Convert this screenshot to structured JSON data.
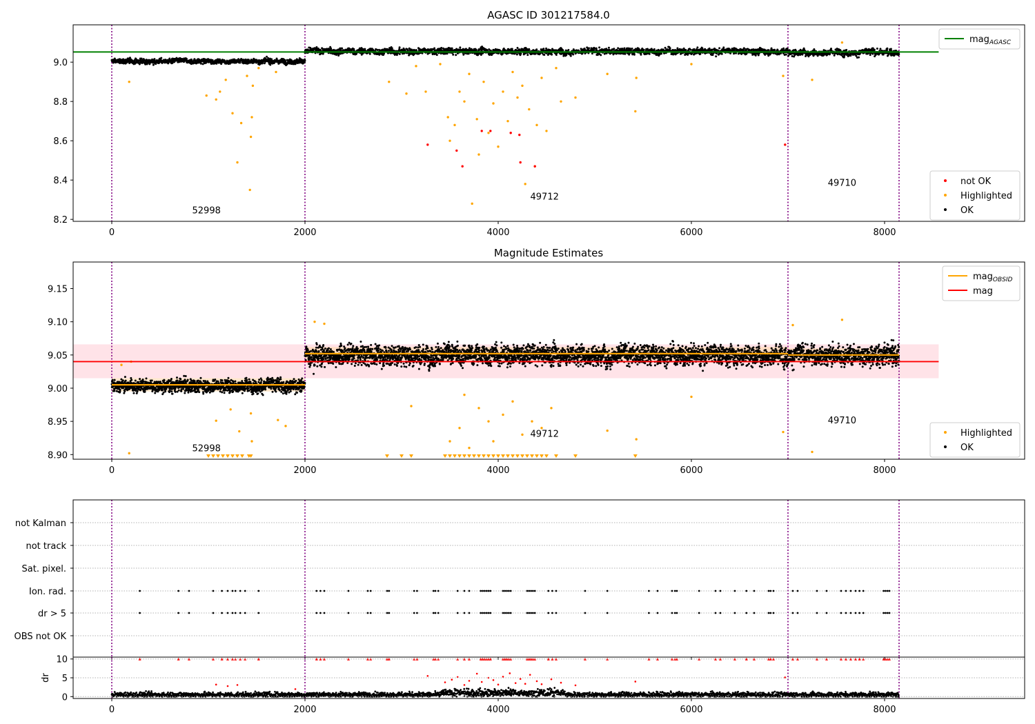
{
  "colors": {
    "ok": "#000000",
    "highlighted": "#ffa500",
    "not_ok": "#ff0000",
    "mag_agasc": "#008000",
    "mag_obsid": "#ffa500",
    "mag": "#ff0000",
    "obs_boundary": "#800080",
    "band": "#ffc0cb",
    "obsid_band": "#ffd7a8"
  },
  "chart_data": [
    {
      "type": "scatter",
      "title": "AGASC ID 301217584.0",
      "xlim": [
        -400,
        9450
      ],
      "ylim": [
        8.19,
        9.19
      ],
      "x_ticks": [
        0,
        2000,
        4000,
        6000,
        8000
      ],
      "y_ticks": [
        8.2,
        8.4,
        8.6,
        8.8,
        9.0
      ],
      "y_tick_labels": [
        "8.2",
        "8.4",
        "8.6",
        "8.8",
        "9.0"
      ],
      "grid": false,
      "legend_placement": "upper-right and lower-right",
      "legend_top": [
        {
          "label": "mag",
          "sub": "AGASC",
          "kind": "line",
          "color": "#008000"
        }
      ],
      "legend_bottom": [
        {
          "label": "not OK",
          "kind": "dot",
          "color": "#ff0000"
        },
        {
          "label": "Highlighted",
          "kind": "dot",
          "color": "#ffa500"
        },
        {
          "label": "OK",
          "kind": "dot",
          "color": "#000000"
        }
      ],
      "mag_agasc": 9.052,
      "obs_boundaries": [
        0,
        2000,
        7000,
        8150
      ],
      "annotations": [
        {
          "text": "52998",
          "x": 980,
          "y": 8.23
        },
        {
          "text": "49712",
          "x": 4480,
          "y": 8.3
        },
        {
          "text": "49710",
          "x": 7560,
          "y": 8.37
        }
      ],
      "ok_segments": [
        {
          "x0": 0,
          "x1": 2000,
          "center": 9.005,
          "spread": 0.012
        },
        {
          "x0": 2000,
          "x1": 7000,
          "center": 9.055,
          "spread": 0.015
        },
        {
          "x0": 7000,
          "x1": 8150,
          "center": 9.05,
          "spread": 0.016
        }
      ],
      "highlighted_points": [
        [
          180,
          8.9
        ],
        [
          980,
          8.83
        ],
        [
          1080,
          8.81
        ],
        [
          1120,
          8.85
        ],
        [
          1180,
          8.91
        ],
        [
          1250,
          8.74
        ],
        [
          1300,
          8.49
        ],
        [
          1340,
          8.69
        ],
        [
          1400,
          8.93
        ],
        [
          1430,
          8.35
        ],
        [
          1440,
          8.62
        ],
        [
          1450,
          8.72
        ],
        [
          1460,
          8.88
        ],
        [
          1520,
          8.97
        ],
        [
          1700,
          8.95
        ],
        [
          2870,
          8.9
        ],
        [
          3050,
          8.84
        ],
        [
          3150,
          8.98
        ],
        [
          3250,
          8.85
        ],
        [
          3400,
          8.99
        ],
        [
          3480,
          8.72
        ],
        [
          3500,
          8.6
        ],
        [
          3550,
          8.68
        ],
        [
          3600,
          8.85
        ],
        [
          3650,
          8.8
        ],
        [
          3700,
          8.94
        ],
        [
          3730,
          8.28
        ],
        [
          3780,
          8.71
        ],
        [
          3800,
          8.53
        ],
        [
          3850,
          8.9
        ],
        [
          3900,
          8.64
        ],
        [
          3950,
          8.79
        ],
        [
          4000,
          8.57
        ],
        [
          4050,
          8.85
        ],
        [
          4100,
          8.7
        ],
        [
          4150,
          8.95
        ],
        [
          4200,
          8.82
        ],
        [
          4250,
          8.88
        ],
        [
          4280,
          8.38
        ],
        [
          4320,
          8.76
        ],
        [
          4380,
          8.47
        ],
        [
          4400,
          8.68
        ],
        [
          4450,
          8.92
        ],
        [
          4500,
          8.65
        ],
        [
          4600,
          8.97
        ],
        [
          4650,
          8.8
        ],
        [
          4800,
          8.82
        ],
        [
          5130,
          8.94
        ],
        [
          5420,
          8.75
        ],
        [
          5430,
          8.92
        ],
        [
          6000,
          8.99
        ],
        [
          6950,
          8.93
        ],
        [
          7250,
          8.91
        ],
        [
          7560,
          9.1
        ]
      ],
      "not_ok_points": [
        [
          3270,
          8.58
        ],
        [
          3570,
          8.55
        ],
        [
          3630,
          8.47
        ],
        [
          3830,
          8.65
        ],
        [
          3920,
          8.65
        ],
        [
          4130,
          8.64
        ],
        [
          4230,
          8.49
        ],
        [
          4380,
          8.47
        ],
        [
          4220,
          8.63
        ],
        [
          6970,
          8.58
        ]
      ]
    },
    {
      "type": "scatter",
      "title": "Magnitude Estimates",
      "xlim": [
        -400,
        9450
      ],
      "ylim": [
        8.893,
        9.19
      ],
      "x_ticks": [
        0,
        2000,
        4000,
        6000,
        8000
      ],
      "y_ticks": [
        8.9,
        8.95,
        9.0,
        9.05,
        9.1,
        9.15
      ],
      "y_tick_labels": [
        "8.90",
        "8.95",
        "9.00",
        "9.05",
        "9.10",
        "9.15"
      ],
      "grid": false,
      "legend_placement": "upper-right and lower-right",
      "legend_top": [
        {
          "label": "mag",
          "sub": "OBSID",
          "kind": "line",
          "color": "#ffa500"
        },
        {
          "label": "mag",
          "kind": "line",
          "color": "#ff0000"
        }
      ],
      "legend_bottom": [
        {
          "label": "Highlighted",
          "kind": "dot",
          "color": "#ffa500"
        },
        {
          "label": "OK",
          "kind": "dot",
          "color": "#000000"
        }
      ],
      "mag": 9.04,
      "mag_band": [
        9.015,
        9.066
      ],
      "obsid_means": [
        {
          "x0": 0,
          "x1": 2000,
          "value": 9.005
        },
        {
          "x0": 2000,
          "x1": 7000,
          "value": 9.052
        },
        {
          "x0": 7000,
          "x1": 8150,
          "value": 9.05
        }
      ],
      "obs_boundaries": [
        0,
        2000,
        7000,
        8150
      ],
      "annotations": [
        {
          "text": "52998",
          "x": 980,
          "y": 8.905
        },
        {
          "text": "49712",
          "x": 4480,
          "y": 8.927
        },
        {
          "text": "49710",
          "x": 7560,
          "y": 8.947
        }
      ],
      "ok_segments": [
        {
          "x0": 0,
          "x1": 2000,
          "center": 9.004,
          "spread": 0.009
        },
        {
          "x0": 2000,
          "x1": 7000,
          "center": 9.05,
          "spread": 0.014
        },
        {
          "x0": 7000,
          "x1": 8150,
          "center": 9.05,
          "spread": 0.014
        }
      ],
      "highlighted_points": [
        [
          180,
          8.902
        ],
        [
          1080,
          8.951
        ],
        [
          1230,
          8.968
        ],
        [
          1320,
          8.935
        ],
        [
          1440,
          8.962
        ],
        [
          1450,
          8.92
        ],
        [
          1720,
          8.952
        ],
        [
          1800,
          8.943
        ],
        [
          3100,
          8.973
        ],
        [
          3500,
          8.92
        ],
        [
          3600,
          8.94
        ],
        [
          3650,
          8.99
        ],
        [
          3700,
          8.91
        ],
        [
          3800,
          8.97
        ],
        [
          3900,
          8.95
        ],
        [
          3950,
          8.92
        ],
        [
          4050,
          8.96
        ],
        [
          4150,
          8.98
        ],
        [
          4250,
          8.93
        ],
        [
          4350,
          8.95
        ],
        [
          4450,
          8.94
        ],
        [
          4550,
          8.97
        ],
        [
          5130,
          8.936
        ],
        [
          5430,
          8.923
        ],
        [
          6000,
          8.987
        ],
        [
          6950,
          8.934
        ],
        [
          7250,
          8.904
        ],
        [
          7560,
          9.103
        ],
        [
          200,
          9.04
        ],
        [
          100,
          9.035
        ],
        [
          2100,
          9.1
        ],
        [
          2200,
          9.097
        ],
        [
          7050,
          9.095
        ]
      ],
      "clipped_markers_x": [
        1000,
        1050,
        1100,
        1150,
        1200,
        1250,
        1300,
        1350,
        1420,
        1440,
        2850,
        3000,
        3100,
        3450,
        3500,
        3550,
        3600,
        3650,
        3700,
        3750,
        3800,
        3850,
        3900,
        3950,
        4000,
        4050,
        4100,
        4150,
        4200,
        4250,
        4300,
        4350,
        4400,
        4450,
        4500,
        4600,
        4800,
        5420
      ]
    },
    {
      "type": "scatter",
      "title": "",
      "xlim": [
        -400,
        9450
      ],
      "x_ticks": [
        0,
        2000,
        4000,
        6000,
        8000
      ],
      "flag_rows": [
        "not Kalman",
        "not track",
        "Sat. pixel.",
        "Ion. rad.",
        "dr > 5",
        "OBS not OK"
      ],
      "flag_x": [
        290,
        690,
        800,
        1050,
        1140,
        1200,
        1250,
        1280,
        1330,
        1380,
        1520,
        2120,
        2160,
        2200,
        2450,
        2650,
        2680,
        2850,
        2870,
        3130,
        3160,
        3330,
        3350,
        3380,
        3580,
        3650,
        3700,
        3820,
        3840,
        3860,
        3880,
        3900,
        3920,
        4050,
        4070,
        4090,
        4110,
        4130,
        4300,
        4320,
        4340,
        4360,
        4380,
        4520,
        4560,
        4600,
        4900,
        5130,
        5560,
        5650,
        5800,
        5830,
        5850,
        6080,
        6250,
        6300,
        6450,
        6570,
        6650,
        6800,
        6820,
        6850,
        7050,
        7100,
        7300,
        7400,
        7550,
        7600,
        7650,
        7700,
        7740,
        7780,
        7990,
        8010,
        8030,
        8050
      ],
      "flagged_rows": [
        "Ion. rad.",
        "dr > 5"
      ],
      "obs_boundaries": [
        0,
        2000,
        7000,
        8150
      ]
    },
    {
      "type": "scatter",
      "title": "",
      "ylabel": "dr",
      "xlim": [
        -400,
        9450
      ],
      "ylim": [
        -0.5,
        10.5
      ],
      "x_ticks": [
        0,
        2000,
        4000,
        6000,
        8000
      ],
      "x_tick_labels": [
        "0",
        "2000",
        "4000",
        "6000",
        "8000"
      ],
      "y_ticks": [
        0,
        5,
        10
      ],
      "y_tick_labels": [
        "0",
        "5",
        "10"
      ],
      "grid": "horizontal dotted",
      "clipped_value": 10,
      "ok_baseline": 0.5,
      "dr_points": [
        [
          3270,
          5.5
        ],
        [
          3450,
          3.8
        ],
        [
          3520,
          4.5
        ],
        [
          3580,
          5.2
        ],
        [
          3650,
          3.1
        ],
        [
          3700,
          4.2
        ],
        [
          3780,
          6.1
        ],
        [
          3830,
          3.9
        ],
        [
          3900,
          5.0
        ],
        [
          3950,
          4.4
        ],
        [
          4000,
          3.2
        ],
        [
          4050,
          5.3
        ],
        [
          4120,
          6.2
        ],
        [
          4180,
          3.6
        ],
        [
          4230,
          4.7
        ],
        [
          4280,
          3.4
        ],
        [
          4330,
          5.8
        ],
        [
          4400,
          4.1
        ],
        [
          4450,
          3.3
        ],
        [
          4550,
          4.6
        ],
        [
          4650,
          3.7
        ],
        [
          4800,
          3.0
        ],
        [
          5420,
          4.0
        ],
        [
          1080,
          3.2
        ],
        [
          1200,
          2.8
        ],
        [
          1300,
          3.1
        ],
        [
          1900,
          2.0
        ],
        [
          6970,
          5.1
        ]
      ],
      "obs_boundaries": [
        0,
        2000,
        7000,
        8150
      ]
    }
  ]
}
